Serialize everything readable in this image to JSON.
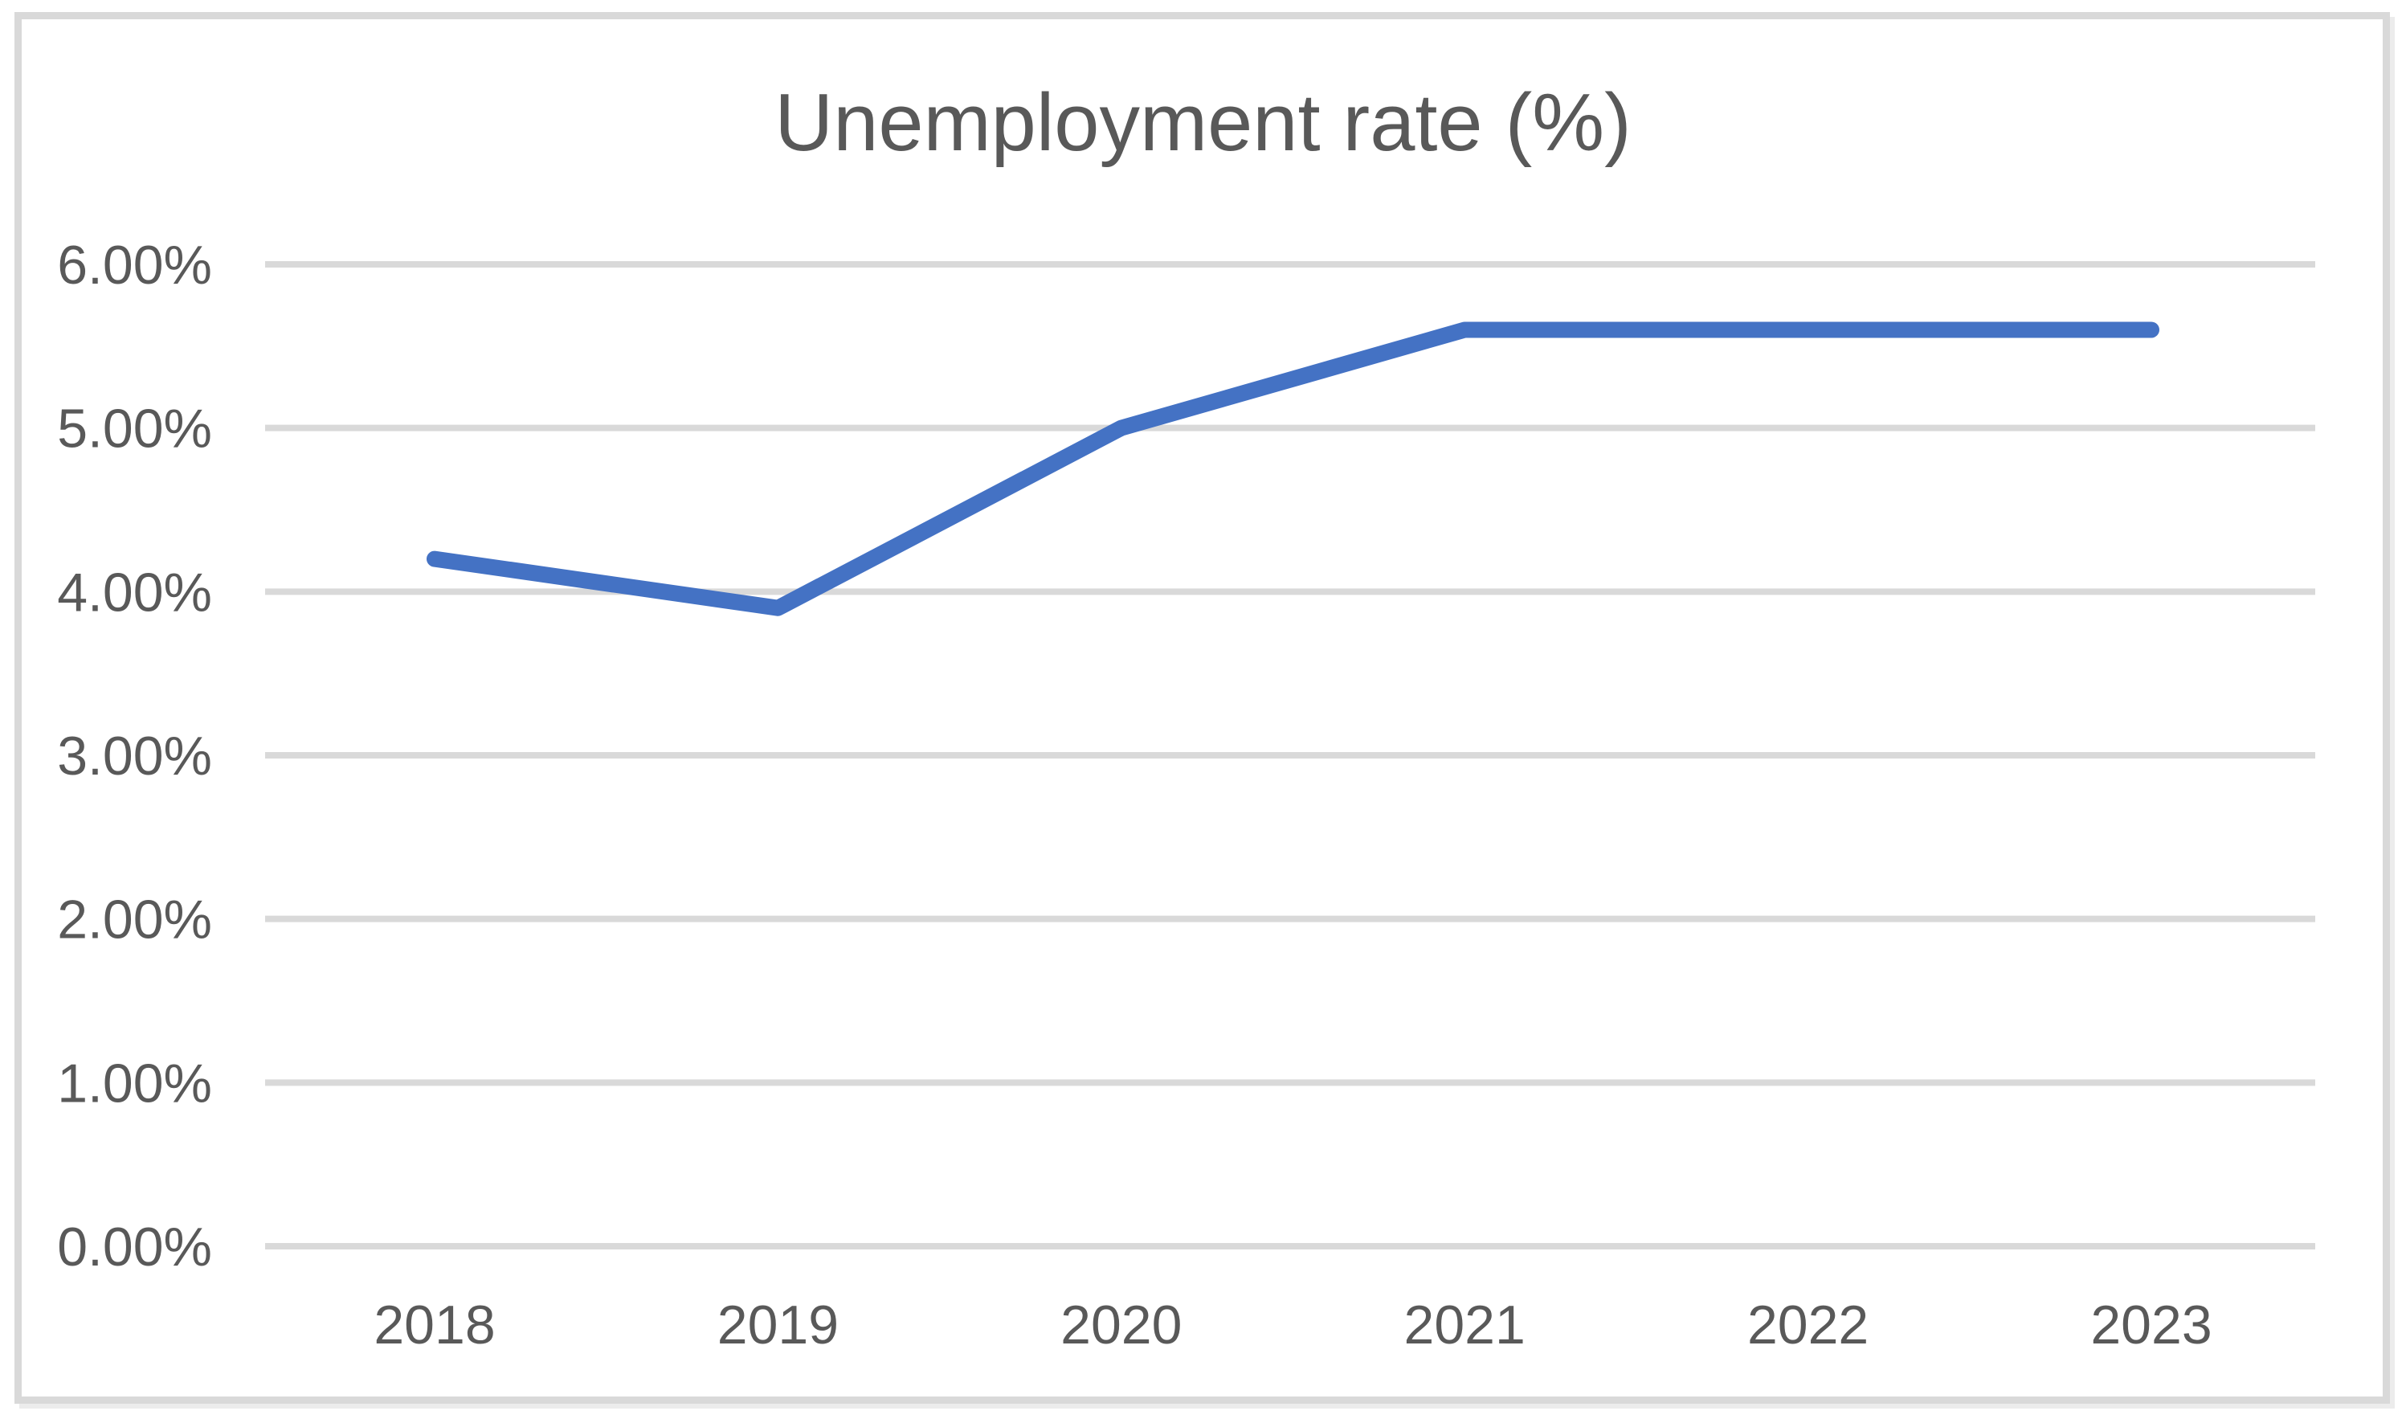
{
  "page": {
    "background_color": "#FFFFFF"
  },
  "frame": {
    "border_color": "#D9D9D9"
  },
  "chart_data": {
    "type": "line",
    "title": "Unemployment rate (%)",
    "categories": [
      "2018",
      "2019",
      "2020",
      "2021",
      "2022",
      "2023"
    ],
    "series": [
      {
        "values": [
          4.2,
          3.9,
          5.0,
          5.6,
          5.6,
          5.6
        ]
      }
    ],
    "y_ticks": [
      {
        "value": 0,
        "label": "0.00%"
      },
      {
        "value": 1,
        "label": "1.00%"
      },
      {
        "value": 2,
        "label": "2.00%"
      },
      {
        "value": 3,
        "label": "3.00%"
      },
      {
        "value": 4,
        "label": "4.00%"
      },
      {
        "value": 5,
        "label": "5.00%"
      },
      {
        "value": 6,
        "label": "6.00%"
      }
    ],
    "ylim": [
      0,
      6
    ],
    "xlabel": "",
    "ylabel": "",
    "grid": true,
    "legend": "none",
    "line_color": "#4472C4",
    "gridline_color": "#D9D9D9",
    "axis_text_color": "#595959",
    "title_color": "#595959"
  }
}
